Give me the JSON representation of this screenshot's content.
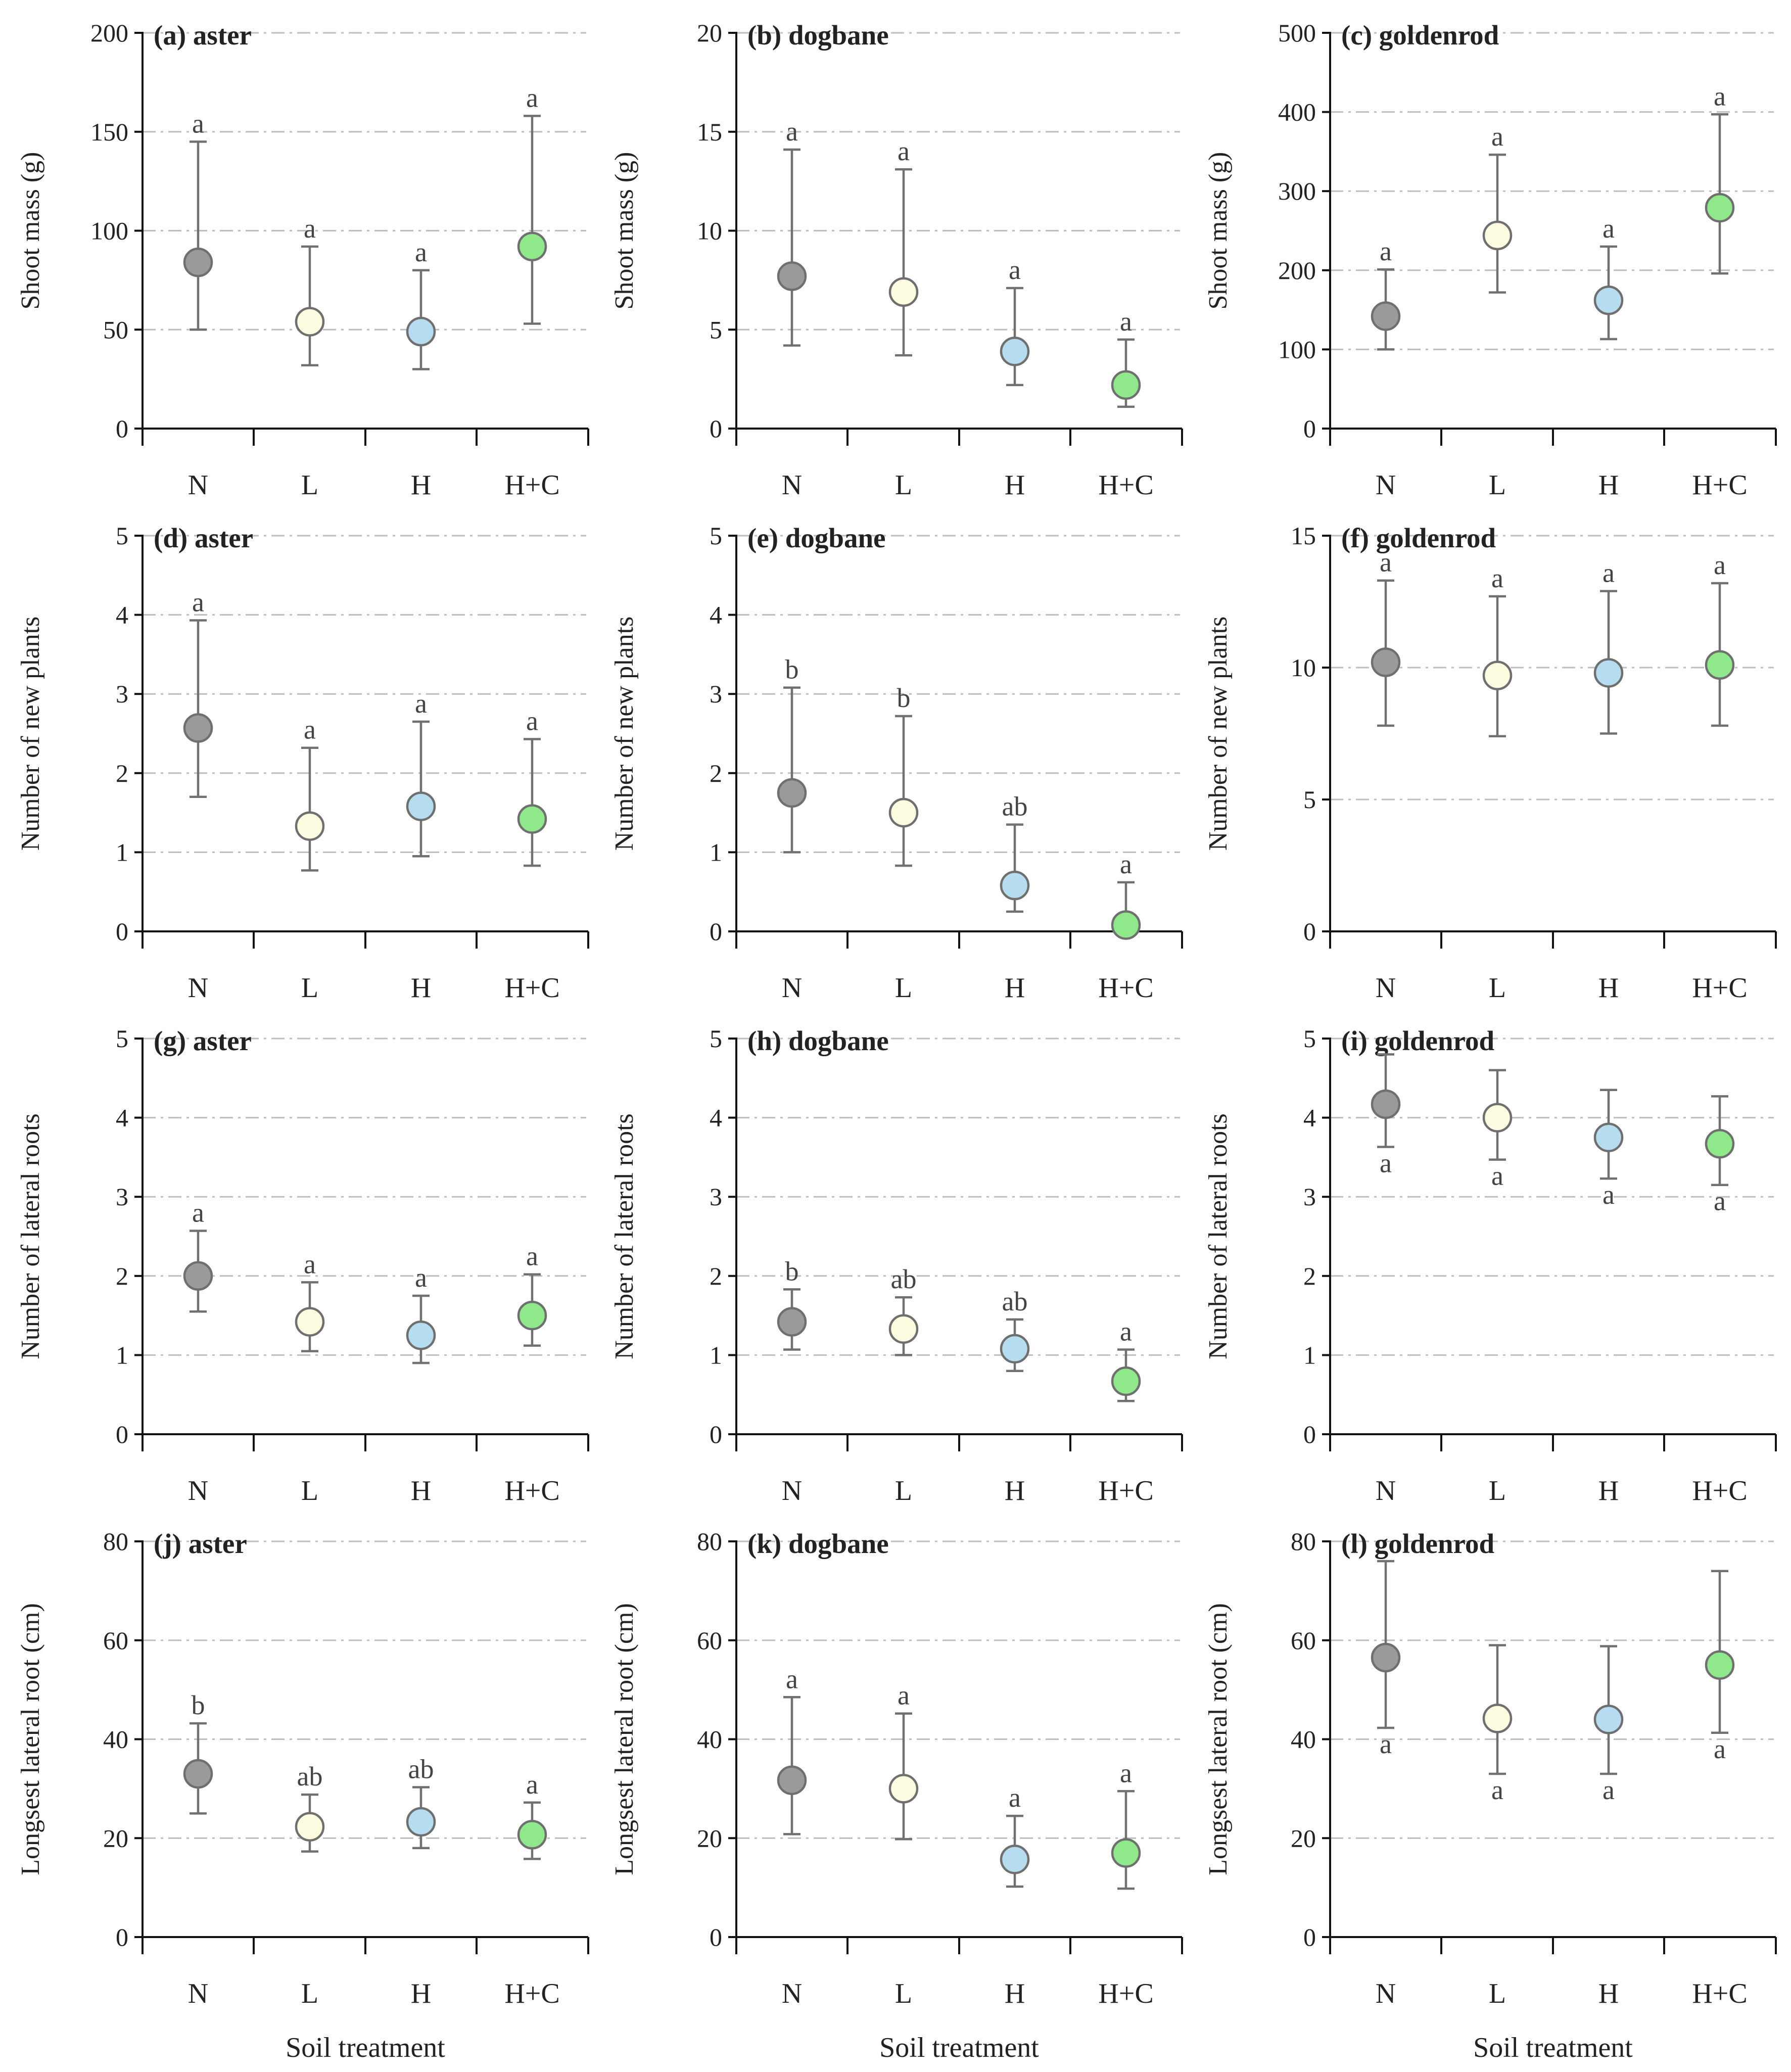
{
  "figure": {
    "xlabel": "Soil treatment",
    "categories": [
      "N",
      "L",
      "H",
      "H+C"
    ],
    "colors": [
      "#9a9a9a",
      "#fdfbe0",
      "#b5dcef",
      "#8fe98a"
    ]
  },
  "chart_data": [
    {
      "type": "scatter",
      "title": "(a) aster",
      "ylabel": "Shoot mass (g)",
      "ylim": [
        0,
        200
      ],
      "yticks": [
        0,
        50,
        100,
        150,
        200
      ],
      "grid": "horizontal dash-dot",
      "categories": [
        "N",
        "L",
        "H",
        "H+C"
      ],
      "values": [
        84,
        54,
        49,
        92
      ],
      "err_low": [
        50,
        32,
        30,
        53
      ],
      "err_high": [
        145,
        92,
        80,
        158
      ],
      "labels": [
        "a",
        "a",
        "a",
        "a"
      ],
      "label_pos": [
        "above",
        "above",
        "above",
        "above"
      ]
    },
    {
      "type": "scatter",
      "title": "(b) dogbane",
      "ylabel": "Shoot mass (g)",
      "ylim": [
        0,
        20
      ],
      "yticks": [
        0,
        5,
        10,
        15,
        20
      ],
      "grid": "horizontal dash-dot",
      "categories": [
        "N",
        "L",
        "H",
        "H+C"
      ],
      "values": [
        7.7,
        6.9,
        3.9,
        2.2
      ],
      "err_low": [
        4.2,
        3.7,
        2.2,
        1.1
      ],
      "err_high": [
        14.1,
        13.1,
        7.1,
        4.5
      ],
      "labels": [
        "a",
        "a",
        "a",
        "a"
      ],
      "label_pos": [
        "above",
        "above",
        "above",
        "above"
      ]
    },
    {
      "type": "scatter",
      "title": "(c) goldenrod",
      "ylabel": "Shoot mass (g)",
      "ylim": [
        0,
        500
      ],
      "yticks": [
        0,
        100,
        200,
        300,
        400,
        500
      ],
      "grid": "horizontal dash-dot",
      "categories": [
        "N",
        "L",
        "H",
        "H+C"
      ],
      "values": [
        142,
        244,
        162,
        279
      ],
      "err_low": [
        100,
        172,
        113,
        196
      ],
      "err_high": [
        201,
        346,
        230,
        397
      ],
      "labels": [
        "a",
        "a",
        "a",
        "a"
      ],
      "label_pos": [
        "above",
        "above",
        "above",
        "above"
      ]
    },
    {
      "type": "scatter",
      "title": "(d) aster",
      "ylabel": "Number of new plants",
      "ylim": [
        0,
        5
      ],
      "yticks": [
        0,
        1,
        2,
        3,
        4,
        5
      ],
      "grid": "horizontal dash-dot",
      "categories": [
        "N",
        "L",
        "H",
        "H+C"
      ],
      "values": [
        2.57,
        1.33,
        1.58,
        1.42
      ],
      "err_low": [
        1.7,
        0.77,
        0.95,
        0.83
      ],
      "err_high": [
        3.93,
        2.32,
        2.65,
        2.43
      ],
      "labels": [
        "a",
        "a",
        "a",
        "a"
      ],
      "label_pos": [
        "above",
        "above",
        "above",
        "above"
      ]
    },
    {
      "type": "scatter",
      "title": "(e) dogbane",
      "ylabel": "Number of new plants",
      "ylim": [
        0,
        5
      ],
      "yticks": [
        0,
        1,
        2,
        3,
        4,
        5
      ],
      "grid": "horizontal dash-dot",
      "categories": [
        "N",
        "L",
        "H",
        "H+C"
      ],
      "values": [
        1.75,
        1.5,
        0.58,
        0.08
      ],
      "err_low": [
        1.0,
        0.83,
        0.25,
        0.0
      ],
      "err_high": [
        3.08,
        2.72,
        1.35,
        0.62
      ],
      "labels": [
        "b",
        "b",
        "ab",
        "a"
      ],
      "label_pos": [
        "above",
        "above",
        "above",
        "above"
      ]
    },
    {
      "type": "scatter",
      "title": "(f) goldenrod",
      "ylabel": "Number of new plants",
      "ylim": [
        0,
        15
      ],
      "yticks": [
        0,
        5,
        10,
        15
      ],
      "grid": "horizontal dash-dot",
      "categories": [
        "N",
        "L",
        "H",
        "H+C"
      ],
      "values": [
        10.2,
        9.7,
        9.8,
        10.1
      ],
      "err_low": [
        7.8,
        7.4,
        7.5,
        7.8
      ],
      "err_high": [
        13.3,
        12.7,
        12.9,
        13.2
      ],
      "labels": [
        "a",
        "a",
        "a",
        "a"
      ],
      "label_pos": [
        "above",
        "above",
        "above",
        "above"
      ]
    },
    {
      "type": "scatter",
      "title": "(g) aster",
      "ylabel": "Number of lateral roots",
      "ylim": [
        0,
        5
      ],
      "yticks": [
        0,
        1,
        2,
        3,
        4,
        5
      ],
      "grid": "horizontal dash-dot",
      "categories": [
        "N",
        "L",
        "H",
        "H+C"
      ],
      "values": [
        2.0,
        1.42,
        1.25,
        1.5
      ],
      "err_low": [
        1.55,
        1.05,
        0.9,
        1.12
      ],
      "err_high": [
        2.57,
        1.92,
        1.75,
        2.02
      ],
      "labels": [
        "a",
        "a",
        "a",
        "a"
      ],
      "label_pos": [
        "above",
        "above",
        "above",
        "above"
      ]
    },
    {
      "type": "scatter",
      "title": "(h) dogbane",
      "ylabel": "Number of lateral roots",
      "ylim": [
        0,
        5
      ],
      "yticks": [
        0,
        1,
        2,
        3,
        4,
        5
      ],
      "grid": "horizontal dash-dot",
      "categories": [
        "N",
        "L",
        "H",
        "H+C"
      ],
      "values": [
        1.42,
        1.33,
        1.08,
        0.67
      ],
      "err_low": [
        1.07,
        1.0,
        0.8,
        0.42
      ],
      "err_high": [
        1.83,
        1.73,
        1.45,
        1.07
      ],
      "labels": [
        "b",
        "ab",
        "ab",
        "a"
      ],
      "label_pos": [
        "above",
        "above",
        "above",
        "above"
      ]
    },
    {
      "type": "scatter",
      "title": "(i) goldenrod",
      "ylabel": "Number of lateral roots",
      "ylim": [
        0,
        5
      ],
      "yticks": [
        0,
        1,
        2,
        3,
        4,
        5
      ],
      "grid": "horizontal dash-dot",
      "categories": [
        "N",
        "L",
        "H",
        "H+C"
      ],
      "values": [
        4.17,
        4.0,
        3.75,
        3.67
      ],
      "err_low": [
        3.63,
        3.47,
        3.23,
        3.15
      ],
      "err_high": [
        4.8,
        4.6,
        4.35,
        4.27
      ],
      "labels": [
        "a",
        "a",
        "a",
        "a"
      ],
      "label_pos": [
        "below",
        "below",
        "below",
        "below"
      ]
    },
    {
      "type": "scatter",
      "title": "(j) aster",
      "ylabel": "Longsest lateral root (cm)",
      "ylim": [
        0,
        80
      ],
      "yticks": [
        0,
        20,
        40,
        60,
        80
      ],
      "grid": "horizontal dash-dot",
      "categories": [
        "N",
        "L",
        "H",
        "H+C"
      ],
      "values": [
        33,
        22.3,
        23.3,
        20.7
      ],
      "err_low": [
        25,
        17.3,
        18,
        15.8
      ],
      "err_high": [
        43.2,
        28.8,
        30.3,
        27.2
      ],
      "labels": [
        "b",
        "ab",
        "ab",
        "a"
      ],
      "label_pos": [
        "above",
        "above",
        "above",
        "above"
      ]
    },
    {
      "type": "scatter",
      "title": "(k) dogbane",
      "ylabel": "Longsest lateral root (cm)",
      "ylim": [
        0,
        80
      ],
      "yticks": [
        0,
        20,
        40,
        60,
        80
      ],
      "grid": "horizontal dash-dot",
      "categories": [
        "N",
        "L",
        "H",
        "H+C"
      ],
      "values": [
        31.7,
        30,
        15.7,
        17
      ],
      "err_low": [
        20.8,
        19.8,
        10.2,
        9.8
      ],
      "err_high": [
        48.5,
        45.2,
        24.5,
        29.5
      ],
      "labels": [
        "a",
        "a",
        "a",
        "a"
      ],
      "label_pos": [
        "above",
        "above",
        "above",
        "above"
      ]
    },
    {
      "type": "scatter",
      "title": "(l) goldenrod",
      "ylabel": "Longsest lateral root (cm)",
      "ylim": [
        0,
        80
      ],
      "yticks": [
        0,
        20,
        40,
        60,
        80
      ],
      "grid": "horizontal dash-dot",
      "categories": [
        "N",
        "L",
        "H",
        "H+C"
      ],
      "values": [
        56.5,
        44.2,
        44,
        55
      ],
      "err_low": [
        42.3,
        33,
        33,
        41.3
      ],
      "err_high": [
        76,
        59,
        58.8,
        74
      ],
      "labels": [
        "a",
        "a",
        "a",
        "a"
      ],
      "label_pos": [
        "below",
        "below",
        "below",
        "below"
      ]
    }
  ]
}
